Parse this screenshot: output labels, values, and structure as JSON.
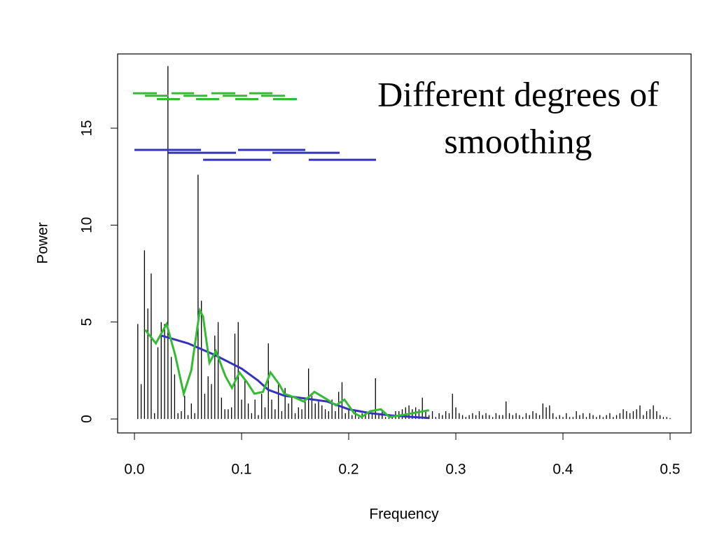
{
  "chart_data": {
    "type": "spike",
    "annotation": [
      "Different degrees of",
      "smoothing"
    ],
    "xlabel": "Frequency",
    "ylabel": "Power",
    "xlim": [
      -0.0157,
      0.5196
    ],
    "ylim": [
      -0.72,
      18.83
    ],
    "xticks": [
      {
        "value": 0,
        "label": "0.0"
      },
      0.1,
      0.2,
      0.3,
      0.4,
      0.5
    ],
    "yticks": [
      0,
      5,
      10,
      15
    ],
    "color": "#000000",
    "x": [
      0.003125,
      0.00625,
      0.009375,
      0.0125,
      0.015625,
      0.01875,
      0.021875,
      0.025,
      0.028125,
      0.03125,
      0.034375,
      0.0375,
      0.040625,
      0.04375,
      0.046875,
      0.05,
      0.053125,
      0.05625,
      0.059375,
      0.0625,
      0.065625,
      0.06875,
      0.071875,
      0.075,
      0.078125,
      0.08125,
      0.084375,
      0.0875,
      0.090625,
      0.09375,
      0.096875,
      0.1,
      0.103125,
      0.10625,
      0.109375,
      0.1125,
      0.115625,
      0.11875,
      0.121875,
      0.125,
      0.128125,
      0.13125,
      0.134375,
      0.1375,
      0.140625,
      0.14375,
      0.146875,
      0.15,
      0.153125,
      0.15625,
      0.159375,
      0.1625,
      0.165625,
      0.16875,
      0.171875,
      0.175,
      0.178125,
      0.18125,
      0.184375,
      0.1875,
      0.190625,
      0.19375,
      0.196875,
      0.2,
      0.203125,
      0.20625,
      0.209375,
      0.2125,
      0.215625,
      0.21875,
      0.221875,
      0.225,
      0.228125,
      0.23125,
      0.234375,
      0.2375,
      0.240625,
      0.24375,
      0.246875,
      0.25,
      0.253125,
      0.25625,
      0.259375,
      0.2625,
      0.265625,
      0.26875,
      0.271875,
      0.275,
      0.278125,
      0.28125,
      0.284375,
      0.2875,
      0.290625,
      0.29375,
      0.296875,
      0.3,
      0.303125,
      0.30625,
      0.309375,
      0.3125,
      0.315625,
      0.31875,
      0.321875,
      0.325,
      0.328125,
      0.33125,
      0.334375,
      0.3375,
      0.340625,
      0.34375,
      0.346875,
      0.35,
      0.353125,
      0.35625,
      0.359375,
      0.3625,
      0.365625,
      0.36875,
      0.371875,
      0.375,
      0.378125,
      0.38125,
      0.384375,
      0.3875,
      0.390625,
      0.39375,
      0.396875,
      0.4,
      0.403125,
      0.40625,
      0.409375,
      0.4125,
      0.415625,
      0.41875,
      0.421875,
      0.425,
      0.428125,
      0.43125,
      0.434375,
      0.4375,
      0.440625,
      0.44375,
      0.446875,
      0.45,
      0.453125,
      0.45625,
      0.459375,
      0.4625,
      0.465625,
      0.46875,
      0.471875,
      0.475,
      0.478125,
      0.48125,
      0.484375,
      0.4875,
      0.490625,
      0.49375,
      0.496875,
      0.5
    ],
    "values": [
      4.9,
      1.8,
      8.7,
      5.7,
      7.5,
      0.3,
      3.7,
      5.0,
      4.9,
      18.2,
      3.2,
      2.3,
      0.3,
      0.4,
      1.2,
      0.2,
      0.8,
      0.3,
      12.6,
      6.1,
      1.3,
      2.2,
      1.8,
      4.3,
      5.0,
      1.1,
      0.5,
      0.5,
      0.6,
      4.4,
      5.0,
      1.0,
      2.1,
      0.8,
      0.3,
      1.0,
      0.2,
      1.3,
      0.6,
      3.9,
      1.0,
      0.5,
      1.8,
      0.4,
      1.6,
      0.8,
      1.2,
      0.3,
      0.6,
      0.5,
      0.9,
      2.6,
      1.2,
      0.8,
      0.9,
      0.7,
      0.5,
      0.4,
      1.0,
      0.4,
      1.4,
      1.9,
      0.3,
      0.5,
      0.2,
      0.4,
      0.1,
      0.3,
      0.2,
      0.4,
      0.3,
      2.1,
      0.2,
      0.4,
      0.1,
      0.2,
      0.1,
      0.4,
      0.4,
      0.5,
      0.6,
      0.7,
      0.5,
      0.6,
      0.5,
      1.1,
      0.4,
      0.2,
      0.4,
      0.1,
      0.3,
      0.2,
      0.4,
      0.3,
      1.3,
      0.6,
      0.3,
      0.2,
      0.1,
      0.2,
      0.3,
      0.2,
      0.4,
      0.2,
      0.3,
      0.2,
      0.1,
      0.3,
      0.2,
      0.2,
      0.9,
      0.3,
      0.2,
      0.3,
      0.2,
      0.1,
      0.3,
      0.2,
      0.4,
      0.3,
      0.2,
      0.8,
      0.6,
      0.7,
      0.3,
      0.1,
      0.2,
      0.1,
      0.3,
      0.1,
      0.1,
      0.4,
      0.2,
      0.3,
      0.1,
      0.3,
      0.2,
      0.1,
      0.2,
      0.1,
      0.2,
      0.3,
      0.1,
      0.2,
      0.3,
      0.5,
      0.4,
      0.3,
      0.4,
      0.5,
      0.7,
      0.2,
      0.4,
      0.5,
      0.7,
      0.4,
      0.2,
      0.1,
      0.1,
      0.05
    ],
    "lines": [
      {
        "color": "#3333bb",
        "x": [
          0.025,
          0.05,
          0.075,
          0.1,
          0.115,
          0.125,
          0.14,
          0.16,
          0.18,
          0.2,
          0.22,
          0.24,
          0.26,
          0.275
        ],
        "values": [
          4.3,
          3.9,
          3.3,
          2.6,
          2.0,
          1.5,
          1.2,
          1.05,
          0.9,
          0.5,
          0.3,
          0.18,
          0.1,
          0.05
        ]
      },
      {
        "color": "#33bb33",
        "x": [
          0.01,
          0.02,
          0.03,
          0.038,
          0.046,
          0.053,
          0.061,
          0.064,
          0.07,
          0.076,
          0.085,
          0.091,
          0.098,
          0.105,
          0.112,
          0.12,
          0.127,
          0.135,
          0.14,
          0.15,
          0.158,
          0.168,
          0.18,
          0.188,
          0.196,
          0.205,
          0.212,
          0.22,
          0.23,
          0.238,
          0.25,
          0.265,
          0.275
        ],
        "values": [
          4.6,
          3.9,
          4.9,
          3.3,
          1.3,
          2.5,
          5.6,
          5.3,
          2.9,
          3.5,
          2.2,
          1.6,
          2.4,
          1.9,
          1.3,
          1.4,
          2.4,
          1.8,
          1.3,
          1.1,
          0.9,
          1.4,
          1.0,
          0.7,
          1.0,
          0.3,
          0.1,
          0.4,
          0.5,
          0.1,
          0.2,
          0.35,
          0.45
        ]
      }
    ],
    "windows": [
      {
        "color": "#33bb33",
        "segments": [
          [
            -0.0013,
            0.0209,
            16.8
          ],
          [
            0.0346,
            0.0556,
            16.8
          ],
          [
            0.0719,
            0.0941,
            16.8
          ],
          [
            0.1072,
            0.1288,
            16.8
          ],
          [
            0.0098,
            0.0314,
            16.67
          ],
          [
            0.0458,
            0.068,
            16.67
          ],
          [
            0.0824,
            0.1052,
            16.67
          ],
          [
            0.1183,
            0.1405,
            16.67
          ],
          [
            0.0209,
            0.0425,
            16.5
          ],
          [
            0.0575,
            0.0791,
            16.5
          ],
          [
            0.0941,
            0.1157,
            16.5
          ],
          [
            0.1294,
            0.1516,
            16.5
          ]
        ]
      },
      {
        "color": "#3333bb",
        "segments": [
          [
            0,
            0.0621,
            13.88
          ],
          [
            0.0967,
            0.1595,
            13.88
          ],
          [
            0.0314,
            0.0948,
            13.73
          ],
          [
            0.1288,
            0.1915,
            13.73
          ],
          [
            0.0641,
            0.1275,
            13.37
          ],
          [
            0.1627,
            0.2255,
            13.37
          ]
        ]
      }
    ]
  }
}
